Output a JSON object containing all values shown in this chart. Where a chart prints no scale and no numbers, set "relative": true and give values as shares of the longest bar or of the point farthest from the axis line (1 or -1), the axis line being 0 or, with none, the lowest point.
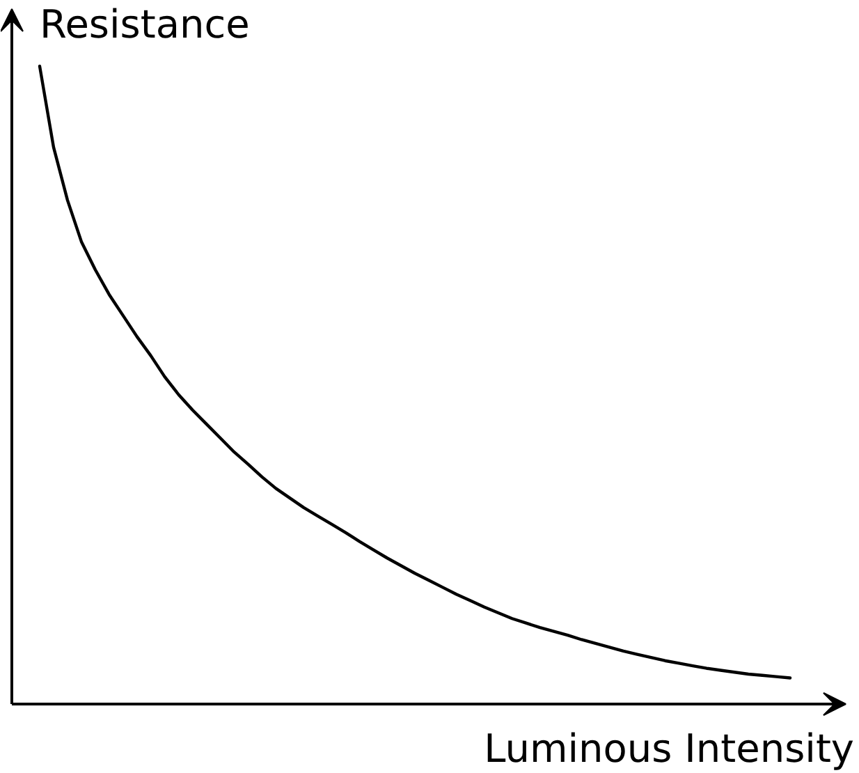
{
  "chart_data": {
    "type": "line",
    "relative": true,
    "xlabel": "Luminous Intensity",
    "ylabel": "Resistance",
    "line_style": "solid",
    "categories": [
      null,
      null,
      null,
      null,
      null,
      null,
      null,
      null,
      null,
      null,
      null,
      null,
      null,
      null,
      null,
      null,
      null,
      null,
      null,
      null,
      null,
      null,
      null,
      null,
      null,
      null,
      null,
      null,
      null,
      null,
      null,
      null,
      null,
      null,
      null,
      null,
      null,
      null,
      null,
      null,
      null,
      null,
      null,
      null,
      null,
      null,
      null,
      null,
      null,
      null,
      null,
      null,
      null,
      null,
      null
    ],
    "series": [
      {
        "color": "#000000",
        "values": [
          1,
          0.873,
          0.79,
          0.725,
          0.681,
          0.642,
          0.609,
          0.576,
          0.546,
          0.513,
          0.485,
          0.461,
          0.439,
          0.417,
          0.395,
          0.376,
          0.356,
          0.338,
          0.323,
          0.308,
          0.295,
          0.282,
          0.269,
          0.255,
          0.242,
          0.229,
          0.217,
          0.205,
          0.194,
          0.183,
          0.172,
          0.162,
          0.152,
          0.143,
          0.134,
          0.127,
          0.12,
          0.114,
          0.108,
          0.101,
          0.095,
          0.089,
          0.083,
          0.078,
          0.073,
          0.068,
          0.064,
          0.06,
          0.056,
          0.053,
          0.05,
          0.047,
          0.045,
          0.043,
          0.041
        ]
      }
    ]
  }
}
